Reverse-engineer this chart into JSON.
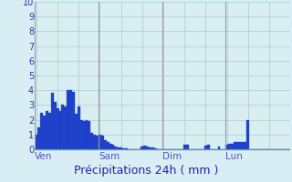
{
  "title": "Précipitations 24h ( mm )",
  "background_color": "#d8eef4",
  "plot_bg_color": "#d8eef0",
  "bar_color": "#2244cc",
  "bar_edge_color": "#1133bb",
  "ylim": [
    0,
    10
  ],
  "yticks": [
    0,
    1,
    2,
    3,
    4,
    5,
    6,
    7,
    8,
    9,
    10
  ],
  "grid_color": "#aacccc",
  "day_line_color": "#9999aa",
  "day_labels": [
    "Ven",
    "Sam",
    "Dim",
    "Lun"
  ],
  "day_positions": [
    0,
    24,
    48,
    72
  ],
  "n_bars": 96,
  "values": [
    1.0,
    1.5,
    2.5,
    2.3,
    2.6,
    2.5,
    3.8,
    3.2,
    2.8,
    2.6,
    3.0,
    2.9,
    4.0,
    4.0,
    3.9,
    2.4,
    2.9,
    2.0,
    1.9,
    2.0,
    1.9,
    1.1,
    1.0,
    0.9,
    1.0,
    0.9,
    0.6,
    0.5,
    0.4,
    0.3,
    0.2,
    0.15,
    0.1,
    0.05,
    0.05,
    0.0,
    0.0,
    0.0,
    0.0,
    0.0,
    0.2,
    0.25,
    0.2,
    0.15,
    0.1,
    0.05,
    0.0,
    0.0,
    0.0,
    0.0,
    0.0,
    0.0,
    0.0,
    0.0,
    0.0,
    0.0,
    0.3,
    0.3,
    0.0,
    0.0,
    0.0,
    0.0,
    0.0,
    0.0,
    0.25,
    0.3,
    0.0,
    0.0,
    0.0,
    0.2,
    0.0,
    0.0,
    0.3,
    0.4,
    0.4,
    0.5,
    0.5,
    0.5,
    0.5,
    0.5,
    2.0,
    0.0,
    0.0,
    0.0,
    0.0,
    0.0,
    0.0,
    0.0,
    0.0,
    0.0,
    0.0,
    0.0,
    0.0,
    0.0,
    0.0,
    0.0
  ],
  "title_fontsize": 9,
  "tick_fontsize": 7,
  "day_label_fontsize": 7.5,
  "day_label_color": "#5555bb"
}
